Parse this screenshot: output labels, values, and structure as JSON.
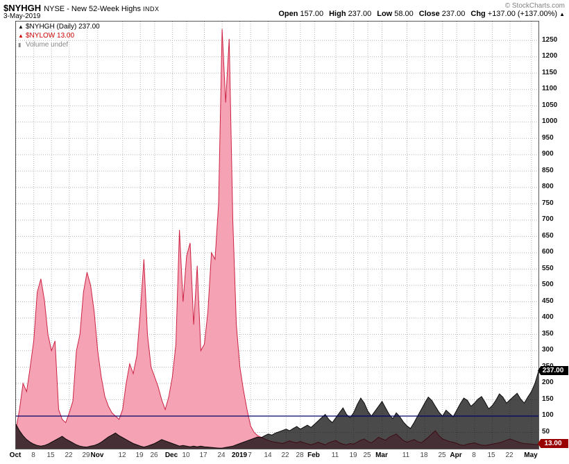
{
  "header": {
    "symbol": "$NYHGH",
    "exchange_name": "NYSE - New 52-Week Highs",
    "type_tag": "INDX",
    "date": "3-May-2019",
    "copyright": "© StockCharts.com",
    "quote": [
      {
        "label": "Open",
        "value": "157.00"
      },
      {
        "label": "High",
        "value": "237.00"
      },
      {
        "label": "Low",
        "value": "58.00"
      },
      {
        "label": "Close",
        "value": "237.00"
      },
      {
        "label": "Chg",
        "value": "+137.00 (+137.00%)"
      }
    ],
    "chg_arrow": "▲"
  },
  "legend": [
    {
      "label": "$NYHGH (Daily) 237.00",
      "color": "#000000",
      "icon_char": "▲",
      "icon": "area-series-icon"
    },
    {
      "label": "$NYLOW 13.00",
      "color": "#cc0000",
      "icon_char": "▲",
      "icon": "area-series-icon"
    },
    {
      "label": "Volume undef",
      "color": "#888888",
      "icon_char": "▮",
      "icon": "volume-bars-icon"
    }
  ],
  "price_tags": [
    {
      "text": "237.00",
      "value": 237,
      "bg": "#000000"
    },
    {
      "text": "13.00",
      "value": 13,
      "bg": "#990000"
    }
  ],
  "chart_data": {
    "type": "area",
    "title": "$NYHGH NYSE - New 52-Week Highs INDX (Daily)",
    "x_axis": "trading days, 1-Oct-2018 through 3-May-2019",
    "ylim": [
      0,
      1308
    ],
    "grid": true,
    "y_ticks": [
      50,
      100,
      150,
      200,
      250,
      300,
      350,
      400,
      450,
      500,
      550,
      600,
      650,
      700,
      750,
      800,
      850,
      900,
      950,
      1000,
      1050,
      1100,
      1150,
      1200,
      1250
    ],
    "ref_line": {
      "value": 100,
      "color": "#000066"
    },
    "x_ticks": [
      {
        "label": "Oct",
        "i": 0,
        "bold": true
      },
      {
        "label": "8",
        "i": 5
      },
      {
        "label": "15",
        "i": 10
      },
      {
        "label": "22",
        "i": 15
      },
      {
        "label": "29",
        "i": 20
      },
      {
        "label": "Nov",
        "i": 23,
        "bold": true
      },
      {
        "label": "12",
        "i": 30
      },
      {
        "label": "19",
        "i": 35
      },
      {
        "label": "26",
        "i": 39
      },
      {
        "label": "Dec",
        "i": 44,
        "bold": true
      },
      {
        "label": "10",
        "i": 48
      },
      {
        "label": "17",
        "i": 53
      },
      {
        "label": "24",
        "i": 58
      },
      {
        "label": "2019",
        "i": 63,
        "bold": true
      },
      {
        "label": "7",
        "i": 66
      },
      {
        "label": "14",
        "i": 71
      },
      {
        "label": "22",
        "i": 76
      },
      {
        "label": "28",
        "i": 80
      },
      {
        "label": "Feb",
        "i": 84,
        "bold": true
      },
      {
        "label": "11",
        "i": 90
      },
      {
        "label": "19",
        "i": 95
      },
      {
        "label": "25",
        "i": 99
      },
      {
        "label": "Mar",
        "i": 103,
        "bold": true
      },
      {
        "label": "11",
        "i": 110
      },
      {
        "label": "18",
        "i": 115
      },
      {
        "label": "25",
        "i": 120
      },
      {
        "label": "Apr",
        "i": 124,
        "bold": true
      },
      {
        "label": "8",
        "i": 129
      },
      {
        "label": "15",
        "i": 134
      },
      {
        "label": "22",
        "i": 139
      },
      {
        "label": "May",
        "i": 145,
        "bold": true
      }
    ],
    "series": [
      {
        "name": "NYLOW",
        "fill": "#f5a3b4",
        "stroke": "#cc2244",
        "last_value": 13.0,
        "values": [
          60,
          120,
          200,
          175,
          250,
          330,
          480,
          520,
          455,
          350,
          300,
          330,
          120,
          90,
          80,
          110,
          145,
          300,
          350,
          480,
          540,
          500,
          420,
          300,
          220,
          160,
          130,
          110,
          100,
          90,
          120,
          200,
          260,
          230,
          285,
          420,
          580,
          350,
          250,
          220,
          190,
          150,
          120,
          160,
          220,
          320,
          670,
          450,
          590,
          630,
          380,
          560,
          300,
          320,
          420,
          600,
          580,
          750,
          1285,
          1060,
          1255,
          700,
          380,
          250,
          180,
          120,
          70,
          50,
          40,
          35,
          30,
          25,
          22,
          20,
          18,
          16,
          20,
          24,
          20,
          18,
          22,
          18,
          15,
          12,
          15,
          20,
          16,
          12,
          18,
          22,
          25,
          18,
          14,
          12,
          16,
          14,
          20,
          26,
          30,
          22,
          18,
          26,
          35,
          30,
          26,
          35,
          40,
          45,
          35,
          25,
          20,
          24,
          28,
          22,
          18,
          26,
          35,
          45,
          55,
          40,
          30,
          26,
          22,
          20,
          16,
          12,
          10,
          14,
          16,
          18,
          14,
          11,
          10,
          12,
          14,
          16,
          18,
          22,
          26,
          30,
          26,
          22,
          18,
          16,
          15,
          14,
          13,
          13
        ]
      },
      {
        "name": "NYHGH",
        "fill": "#4a4a4a",
        "stroke": "#111111",
        "blend": "multiply",
        "last_value": 237.0,
        "values": [
          75,
          55,
          40,
          28,
          20,
          14,
          10,
          8,
          10,
          14,
          20,
          26,
          32,
          38,
          30,
          24,
          18,
          12,
          8,
          6,
          5,
          8,
          10,
          14,
          20,
          28,
          36,
          42,
          48,
          40,
          34,
          28,
          22,
          16,
          12,
          8,
          5,
          8,
          12,
          16,
          22,
          28,
          24,
          20,
          16,
          12,
          8,
          10,
          8,
          6,
          8,
          6,
          8,
          6,
          5,
          4,
          3,
          2,
          2,
          4,
          6,
          8,
          12,
          16,
          20,
          24,
          28,
          32,
          36,
          34,
          40,
          45,
          42,
          48,
          52,
          56,
          60,
          55,
          62,
          68,
          60,
          66,
          72,
          65,
          75,
          85,
          95,
          105,
          90,
          80,
          95,
          110,
          125,
          105,
          95,
          110,
          135,
          155,
          140,
          115,
          100,
          115,
          130,
          145,
          125,
          105,
          92,
          110,
          98,
          82,
          70,
          62,
          80,
          100,
          120,
          140,
          158,
          148,
          130,
          112,
          100,
          118,
          108,
          98,
          118,
          138,
          155,
          148,
          130,
          140,
          152,
          160,
          142,
          122,
          132,
          148,
          168,
          158,
          140,
          150,
          160,
          170,
          152,
          140,
          158,
          175,
          200,
          237
        ]
      }
    ]
  }
}
